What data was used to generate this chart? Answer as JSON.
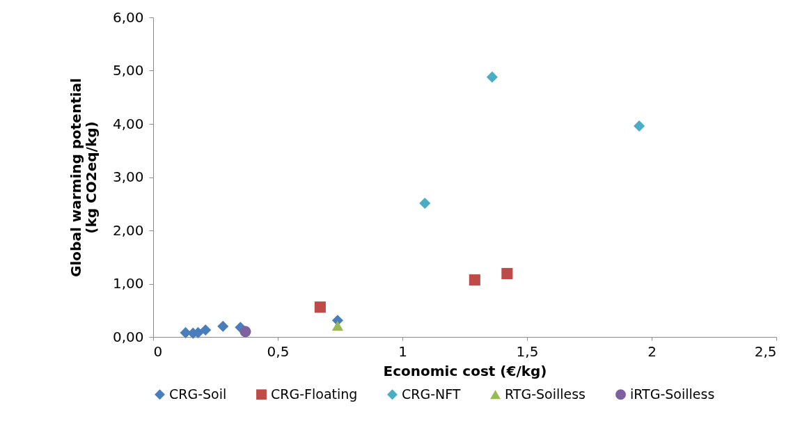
{
  "chart_data": {
    "type": "scatter",
    "xlabel": "Economic cost (€/kg)",
    "ylabel": "Global warming potential (kg CO2eq/kg)",
    "xlim": [
      0,
      2.5
    ],
    "xticks": [
      0,
      {
        "value": 0.5,
        "label": "0,5"
      },
      1,
      {
        "value": 1.5,
        "label": "1,5"
      },
      2,
      {
        "value": 2.5,
        "label": "2,5"
      }
    ],
    "ylim": [
      0,
      6
    ],
    "yticks": [
      {
        "value": 0,
        "label": "0,00"
      },
      {
        "value": 1,
        "label": "1,00"
      },
      {
        "value": 2,
        "label": "2,00"
      },
      {
        "value": 3,
        "label": "3,00"
      },
      {
        "value": 4,
        "label": "4,00"
      },
      {
        "value": 5,
        "label": "5,00"
      },
      {
        "value": 6,
        "label": "6,00"
      }
    ],
    "grid": false,
    "legend": "bottom",
    "series": [
      {
        "name": "CRG-Soil",
        "color": "#4a7ebb",
        "marker": "diamond",
        "x": [
          0.13,
          0.16,
          0.18,
          0.21,
          0.28,
          0.35,
          0.74
        ],
        "values": [
          0.08,
          0.07,
          0.08,
          0.13,
          0.2,
          0.18,
          0.31
        ]
      },
      {
        "name": "CRG-Floating",
        "color": "#be4b48",
        "marker": "square",
        "x": [
          0.67,
          1.29,
          1.42
        ],
        "values": [
          0.56,
          1.07,
          1.19
        ]
      },
      {
        "name": "CRG-NFT",
        "color": "#4bacc6",
        "marker": "diamond",
        "x": [
          1.09,
          1.36,
          1.95
        ],
        "values": [
          2.51,
          4.88,
          3.96
        ]
      },
      {
        "name": "RTG-Soilless",
        "color": "#98b954",
        "marker": "triangle",
        "x": [
          0.74
        ],
        "values": [
          0.21
        ]
      },
      {
        "name": "iRTG-Soilless",
        "color": "#7d60a0",
        "marker": "circle",
        "x": [
          0.37
        ],
        "values": [
          0.1
        ]
      }
    ]
  }
}
